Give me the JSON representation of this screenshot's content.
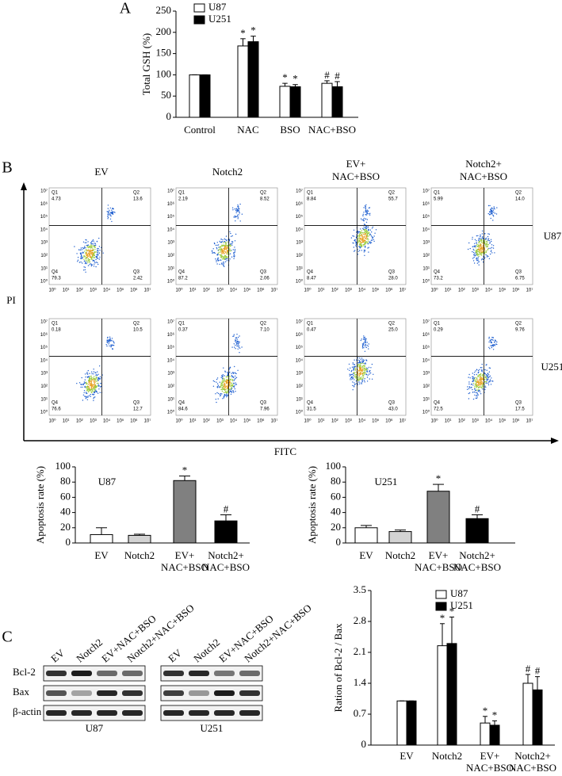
{
  "panels": [
    "A",
    "B",
    "C"
  ],
  "chart_data": [
    {
      "type": "bar",
      "ylabel": "Total GSH (%)",
      "categories": [
        [
          "Control"
        ],
        [
          "NAC"
        ],
        [
          "BSO"
        ],
        [
          "NAC+BSO"
        ]
      ],
      "series": [
        {
          "name": "U87",
          "color": "#ffffff",
          "values": [
            100,
            168,
            73,
            80
          ],
          "errors": [
            0,
            17,
            7,
            6
          ],
          "annotations": [
            null,
            "*",
            "*",
            "#"
          ]
        },
        {
          "name": "U251",
          "color": "#000000",
          "values": [
            100,
            178,
            72,
            72
          ],
          "errors": [
            0,
            13,
            5,
            12
          ],
          "annotations": [
            null,
            "*",
            "*",
            "#"
          ]
        }
      ],
      "ylim": [
        0,
        250
      ],
      "yticks": [
        0,
        50,
        100,
        150,
        200,
        250
      ],
      "legend": "top-left"
    },
    {
      "type": "bar",
      "title": "U87",
      "ylabel": "Apoptosis rate (%)",
      "categories": [
        [
          "EV"
        ],
        [
          "Notch2"
        ],
        [
          "EV+",
          "NAC+BSO"
        ],
        [
          "Notch2+",
          "NAC+BSO"
        ]
      ],
      "values": [
        11,
        10,
        82,
        29
      ],
      "errors": [
        9,
        1.5,
        6,
        8
      ],
      "annotations": [
        null,
        null,
        "*",
        "#"
      ],
      "colors": [
        "#ffffff",
        "#d3d3d3",
        "#808080",
        "#000000"
      ],
      "ylim": [
        0,
        100
      ],
      "yticks": [
        0,
        20,
        40,
        60,
        80,
        100
      ]
    },
    {
      "type": "bar",
      "title": "U251",
      "ylabel": "Apoptosis rate (%)",
      "categories": [
        [
          "EV"
        ],
        [
          "Notch2"
        ],
        [
          "EV+",
          "NAC+BSO"
        ],
        [
          "Notch2+",
          "NAC+BSO"
        ]
      ],
      "values": [
        20,
        15,
        68,
        32
      ],
      "errors": [
        3,
        2,
        9,
        5
      ],
      "annotations": [
        null,
        null,
        "*",
        "#"
      ],
      "colors": [
        "#ffffff",
        "#d3d3d3",
        "#808080",
        "#000000"
      ],
      "ylim": [
        0,
        100
      ],
      "yticks": [
        0,
        20,
        40,
        60,
        80,
        100
      ]
    },
    {
      "type": "bar",
      "ylabel": "Ration of  Bcl-2 / Bax",
      "categories": [
        [
          "EV"
        ],
        [
          "Notch2"
        ],
        [
          "EV+",
          "NAC+BSO"
        ],
        [
          "Notch2+",
          "NAC+BSO"
        ]
      ],
      "series": [
        {
          "name": "U87",
          "color": "#ffffff",
          "values": [
            1.0,
            2.25,
            0.5,
            1.4
          ],
          "errors": [
            0,
            0.5,
            0.15,
            0.2
          ],
          "annotations": [
            null,
            "*",
            "*",
            "#"
          ]
        },
        {
          "name": "U251",
          "color": "#000000",
          "values": [
            1.0,
            2.3,
            0.45,
            1.25
          ],
          "errors": [
            0,
            0.6,
            0.1,
            0.3
          ],
          "annotations": [
            null,
            "*",
            "*",
            "#"
          ]
        }
      ],
      "ylim": [
        0,
        3.5
      ],
      "yticks": [
        0,
        0.7,
        1.4,
        2.1,
        2.8,
        3.5
      ],
      "legend": "top-right"
    }
  ],
  "flow": {
    "columns": [
      [
        "EV"
      ],
      [
        "Notch2"
      ],
      [
        "EV+",
        "NAC+BSO"
      ],
      [
        "Notch2+",
        "NAC+BSO"
      ]
    ],
    "rows": [
      "U87",
      "U251"
    ],
    "y_label": "PI",
    "x_label": "FITC",
    "tick_labels": [
      "10⁰",
      "10¹",
      "10²",
      "10³",
      "10⁴",
      "10⁵",
      "10⁶",
      "10⁷"
    ],
    "quadrant_names": [
      "Q1",
      "Q2",
      "Q3",
      "Q4"
    ],
    "plots": [
      [
        [
          "4.73",
          "13.6",
          "2.42",
          "79.3"
        ],
        [
          "2.19",
          "8.52",
          "2.06",
          "87.2"
        ],
        [
          "8.84",
          "55.7",
          "28.0",
          "8.47"
        ],
        [
          "5.99",
          "14.0",
          "6.75",
          "73.2"
        ]
      ],
      [
        [
          "0.18",
          "10.5",
          "12.7",
          "76.6"
        ],
        [
          "0.37",
          "7.10",
          "7.96",
          "84.6"
        ],
        [
          "0.47",
          "25.0",
          "43.0",
          "31.5"
        ],
        [
          "0.29",
          "9.76",
          "17.5",
          "72.5"
        ]
      ]
    ]
  },
  "blot": {
    "lanes": [
      "EV",
      "Notch2",
      "EV+NAC+BSO",
      "Notch2+NAC+BSO"
    ],
    "proteins": [
      "Bcl-2",
      "Bax",
      "β-actin"
    ],
    "cell_lines": [
      "U87",
      "U251"
    ]
  }
}
